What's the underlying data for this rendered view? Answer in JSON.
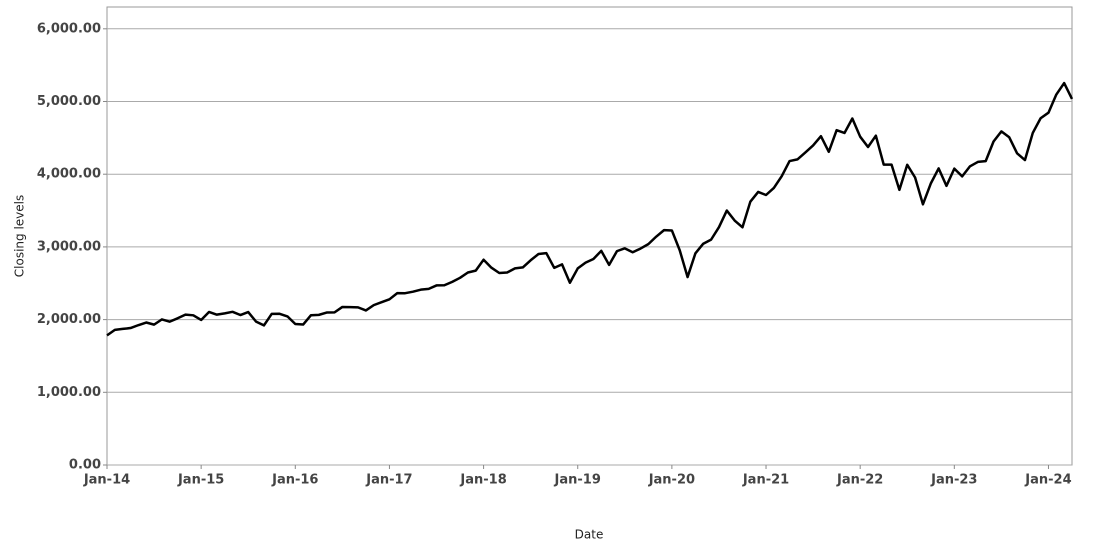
{
  "chart_data": {
    "type": "line",
    "x_label": "Date",
    "y_label": "Closing levels",
    "x": [
      "2014-01",
      "2014-02",
      "2014-03",
      "2014-04",
      "2014-05",
      "2014-06",
      "2014-07",
      "2014-08",
      "2014-09",
      "2014-10",
      "2014-11",
      "2014-12",
      "2015-01",
      "2015-02",
      "2015-03",
      "2015-04",
      "2015-05",
      "2015-06",
      "2015-07",
      "2015-08",
      "2015-09",
      "2015-10",
      "2015-11",
      "2015-12",
      "2016-01",
      "2016-02",
      "2016-03",
      "2016-04",
      "2016-05",
      "2016-06",
      "2016-07",
      "2016-08",
      "2016-09",
      "2016-10",
      "2016-11",
      "2016-12",
      "2017-01",
      "2017-02",
      "2017-03",
      "2017-04",
      "2017-05",
      "2017-06",
      "2017-07",
      "2017-08",
      "2017-09",
      "2017-10",
      "2017-11",
      "2017-12",
      "2018-01",
      "2018-02",
      "2018-03",
      "2018-04",
      "2018-05",
      "2018-06",
      "2018-07",
      "2018-08",
      "2018-09",
      "2018-10",
      "2018-11",
      "2018-12",
      "2019-01",
      "2019-02",
      "2019-03",
      "2019-04",
      "2019-05",
      "2019-06",
      "2019-07",
      "2019-08",
      "2019-09",
      "2019-10",
      "2019-11",
      "2019-12",
      "2020-01",
      "2020-02",
      "2020-03",
      "2020-04",
      "2020-05",
      "2020-06",
      "2020-07",
      "2020-08",
      "2020-09",
      "2020-10",
      "2020-11",
      "2020-12",
      "2021-01",
      "2021-02",
      "2021-03",
      "2021-04",
      "2021-05",
      "2021-06",
      "2021-07",
      "2021-08",
      "2021-09",
      "2021-10",
      "2021-11",
      "2021-12",
      "2022-01",
      "2022-02",
      "2022-03",
      "2022-04",
      "2022-05",
      "2022-06",
      "2022-07",
      "2022-08",
      "2022-09",
      "2022-10",
      "2022-11",
      "2022-12",
      "2023-01",
      "2023-02",
      "2023-03",
      "2023-04",
      "2023-05",
      "2023-06",
      "2023-07",
      "2023-08",
      "2023-09",
      "2023-10",
      "2023-11",
      "2023-12",
      "2024-01",
      "2024-02",
      "2024-03",
      "2024-04"
    ],
    "series": [
      {
        "name": "Closing levels",
        "color": "#000000",
        "values": [
          1783,
          1859,
          1872,
          1884,
          1924,
          1960,
          1931,
          2003,
          1972,
          2018,
          2068,
          2059,
          1995,
          2105,
          2068,
          2086,
          2107,
          2063,
          2104,
          1972,
          1920,
          2079,
          2080,
          2044,
          1940,
          1932,
          2060,
          2065,
          2097,
          2099,
          2174,
          2171,
          2168,
          2126,
          2199,
          2239,
          2279,
          2364,
          2363,
          2384,
          2412,
          2423,
          2470,
          2472,
          2519,
          2575,
          2648,
          2674,
          2824,
          2714,
          2641,
          2648,
          2705,
          2718,
          2816,
          2902,
          2914,
          2712,
          2760,
          2507,
          2704,
          2784,
          2834,
          2946,
          2752,
          2942,
          2980,
          2926,
          2977,
          3038,
          3141,
          3231,
          3226,
          2954,
          2585,
          2912,
          3044,
          3100,
          3271,
          3500,
          3363,
          3270,
          3622,
          3756,
          3714,
          3811,
          3973,
          4181,
          4204,
          4298,
          4395,
          4523,
          4308,
          4605,
          4567,
          4766,
          4516,
          4374,
          4530,
          4132,
          4132,
          3785,
          4130,
          3955,
          3586,
          3872,
          4080,
          3840,
          4077,
          3970,
          4109,
          4169,
          4180,
          4450,
          4589,
          4508,
          4288,
          4194,
          4568,
          4770,
          4846,
          5096,
          5254,
          5036
        ]
      }
    ],
    "xlim": [
      "2014-01",
      "2024-04"
    ],
    "xticks": [
      {
        "value": "2014-01",
        "label": "Jan-14"
      },
      {
        "value": "2015-01",
        "label": "Jan-15"
      },
      {
        "value": "2016-01",
        "label": "Jan-16"
      },
      {
        "value": "2017-01",
        "label": "Jan-17"
      },
      {
        "value": "2018-01",
        "label": "Jan-18"
      },
      {
        "value": "2019-01",
        "label": "Jan-19"
      },
      {
        "value": "2020-01",
        "label": "Jan-20"
      },
      {
        "value": "2021-01",
        "label": "Jan-21"
      },
      {
        "value": "2022-01",
        "label": "Jan-22"
      },
      {
        "value": "2023-01",
        "label": "Jan-23"
      },
      {
        "value": "2024-01",
        "label": "Jan-24"
      }
    ],
    "ylim": [
      0,
      6300
    ],
    "yticks": [
      {
        "value": 0,
        "label": "0.00"
      },
      {
        "value": 1000,
        "label": "1,000.00"
      },
      {
        "value": 2000,
        "label": "2,000.00"
      },
      {
        "value": 3000,
        "label": "3,000.00"
      },
      {
        "value": 4000,
        "label": "4,000.00"
      },
      {
        "value": 5000,
        "label": "5,000.00"
      },
      {
        "value": 6000,
        "label": "6,000.00"
      }
    ],
    "grid": true
  }
}
